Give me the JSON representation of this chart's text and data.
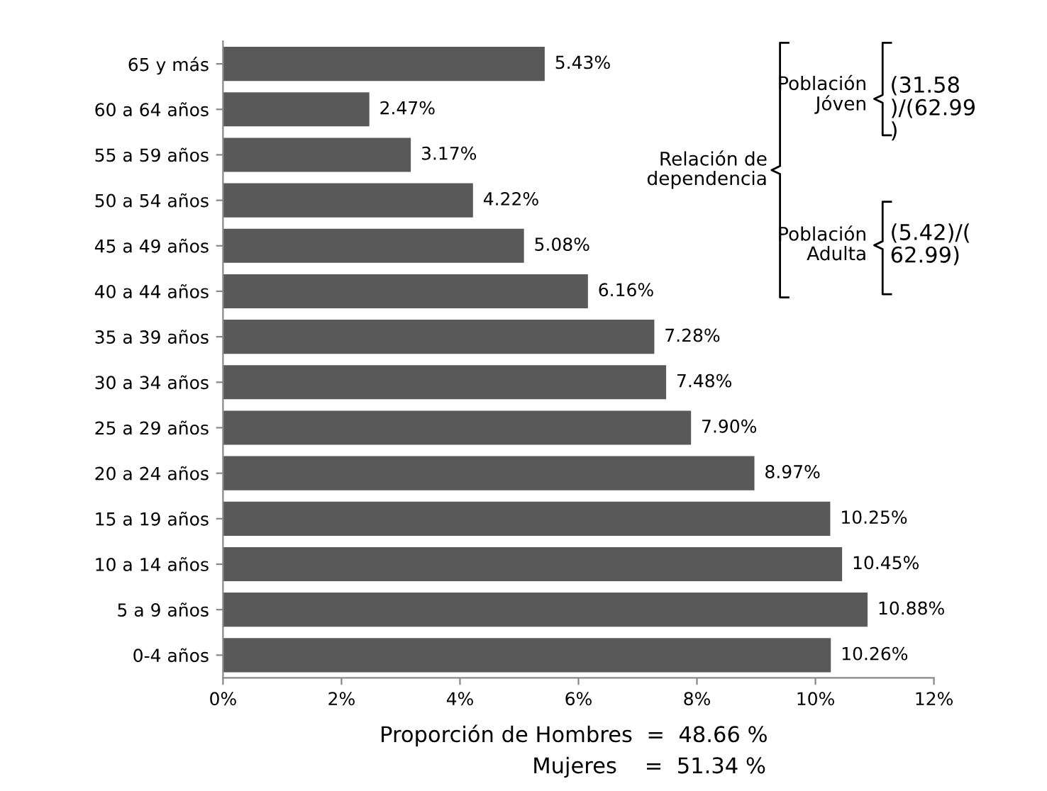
{
  "chart_data": {
    "type": "bar",
    "orientation": "horizontal",
    "categories": [
      "65 y más",
      "60 a 64 años",
      "55 a 59 años",
      "50 a 54 años",
      "45 a 49 años",
      "40 a 44 años",
      "35 a 39 años",
      "30 a 34 años",
      "25 a 29 años",
      "20 a 24 años",
      "15 a 19 años",
      "10 a 14 años",
      "5 a 9 años",
      "0-4 años"
    ],
    "values": [
      5.43,
      2.47,
      3.17,
      4.22,
      5.08,
      6.16,
      7.28,
      7.48,
      7.9,
      8.97,
      10.25,
      10.45,
      10.88,
      10.26
    ],
    "value_labels": [
      "5.43%",
      "2.47%",
      "3.17%",
      "4.22%",
      "5.08%",
      "6.16%",
      "7.28%",
      "7.48%",
      "7.90%",
      "8.97%",
      "10.25%",
      "10.45%",
      "10.88%",
      "10.26%"
    ],
    "color": "#595959",
    "xlim": [
      0,
      12
    ],
    "xticks": [
      {
        "value": 0,
        "label": "0%"
      },
      {
        "value": 2,
        "label": "2%"
      },
      {
        "value": 4,
        "label": "4%"
      },
      {
        "value": 6,
        "label": "6%"
      },
      {
        "value": 8,
        "label": "8%"
      },
      {
        "value": 10,
        "label": "10%"
      },
      {
        "value": 12,
        "label": "12%"
      }
    ],
    "grid": false,
    "annotations": [
      "Relación de\ndependencia",
      "Población\nJóven",
      "(31.58\n)/(62.99\n)",
      "Población\nAdulta",
      "(5.42)/(\n62.99)",
      "Proporción de Hombres  =  48.66 %",
      "Mujeres    =  51.34 %"
    ]
  }
}
